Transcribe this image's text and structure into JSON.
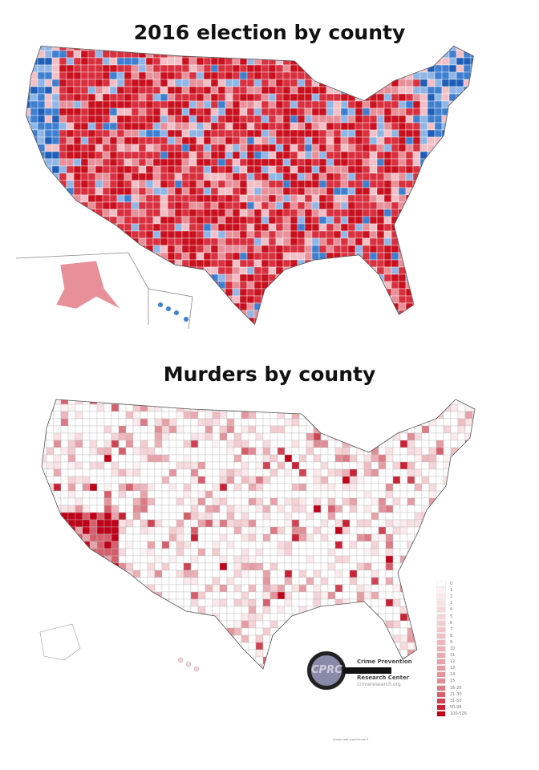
{
  "top_map": {
    "title": "2016 election by county",
    "colors": {
      "strong_red": "#c8101e",
      "red": "#d9303f",
      "light_red": "#e8909a",
      "pink": "#f2bfc6",
      "light_blue": "#8fb6e6",
      "blue": "#3f7fd0",
      "dark_blue": "#1f5fb8"
    }
  },
  "bottom_map": {
    "title": "Murders by county",
    "legend": [
      {
        "label": "0",
        "color": "#ffffff"
      },
      {
        "label": "1",
        "color": "#fdf2f3"
      },
      {
        "label": "2",
        "color": "#fbe9eb"
      },
      {
        "label": "3",
        "color": "#f9e2e4"
      },
      {
        "label": "4",
        "color": "#f7dadd"
      },
      {
        "label": "5",
        "color": "#f5d3d6"
      },
      {
        "label": "6",
        "color": "#f3ccd0"
      },
      {
        "label": "7",
        "color": "#f1c5c9"
      },
      {
        "label": "8",
        "color": "#efbec3"
      },
      {
        "label": "9",
        "color": "#edb7bc"
      },
      {
        "label": "10",
        "color": "#ebb0b6"
      },
      {
        "label": "11",
        "color": "#e9a9af"
      },
      {
        "label": "12",
        "color": "#e7a2a9"
      },
      {
        "label": "13",
        "color": "#e59ba2"
      },
      {
        "label": "14",
        "color": "#e3949c"
      },
      {
        "label": "15",
        "color": "#e08d95"
      },
      {
        "label": "16-20",
        "color": "#dc7a85"
      },
      {
        "label": "21-30",
        "color": "#d65f6d"
      },
      {
        "label": "31-50",
        "color": "#cf4454"
      },
      {
        "label": "50-99",
        "color": "#c82236"
      },
      {
        "label": "100-526",
        "color": "#c00018"
      }
    ],
    "logo": {
      "monogram": "CPRC",
      "line1": "Crime Prevention",
      "line2": "Research Center",
      "url": "crimeresearch.org"
    },
    "credit": "Created with mapchart.net ©"
  }
}
